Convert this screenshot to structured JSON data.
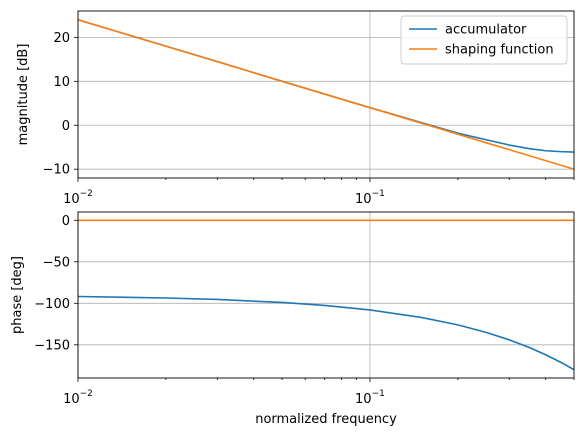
{
  "chart_data": [
    {
      "type": "line",
      "xscale": "log",
      "xlim": [
        0.01,
        0.5
      ],
      "ylim": [
        -12,
        26
      ],
      "xlabel": "",
      "ylabel": "magnitude [dB]",
      "grid": true,
      "legend_position": "top-right",
      "x_ticks": [
        {
          "value": 0.01,
          "base": "10",
          "exp": "−2"
        },
        {
          "value": 0.1,
          "base": "10",
          "exp": "−1"
        }
      ],
      "y_ticks": [
        {
          "value": 20,
          "label": "20"
        },
        {
          "value": 10,
          "label": "10"
        },
        {
          "value": 0,
          "label": "0"
        },
        {
          "value": -10,
          "label": "−10"
        }
      ],
      "series": [
        {
          "name": "accumulator",
          "color": "#1f77b4",
          "points": [
            [
              0.01,
              24.0
            ],
            [
              0.02,
              18.0
            ],
            [
              0.03,
              14.5
            ],
            [
              0.05,
              10.0
            ],
            [
              0.07,
              7.1
            ],
            [
              0.1,
              4.0
            ],
            [
              0.12,
              2.5
            ],
            [
              0.15,
              0.6
            ],
            [
              0.2,
              -1.8
            ],
            [
              0.25,
              -3.3
            ],
            [
              0.3,
              -4.5
            ],
            [
              0.35,
              -5.3
            ],
            [
              0.4,
              -5.8
            ],
            [
              0.45,
              -6.0
            ],
            [
              0.5,
              -6.1
            ]
          ]
        },
        {
          "name": "shaping function",
          "color": "#ff7f0e",
          "points": [
            [
              0.01,
              24.0
            ],
            [
              0.1,
              4.0
            ],
            [
              0.5,
              -10.0
            ]
          ]
        }
      ]
    },
    {
      "type": "line",
      "xscale": "log",
      "xlim": [
        0.01,
        0.5
      ],
      "ylim": [
        -190,
        10
      ],
      "xlabel": "normalized frequency",
      "ylabel": "phase [deg]",
      "grid": true,
      "x_ticks": [
        {
          "value": 0.01,
          "base": "10",
          "exp": "−2"
        },
        {
          "value": 0.1,
          "base": "10",
          "exp": "−1"
        }
      ],
      "y_ticks": [
        {
          "value": 0,
          "label": "0"
        },
        {
          "value": -50,
          "label": "−50"
        },
        {
          "value": -100,
          "label": "−100"
        },
        {
          "value": -150,
          "label": "−150"
        }
      ],
      "series": [
        {
          "name": "accumulator",
          "color": "#1f77b4",
          "points": [
            [
              0.01,
              -91.8
            ],
            [
              0.02,
              -93.6
            ],
            [
              0.03,
              -95.4
            ],
            [
              0.05,
              -99.0
            ],
            [
              0.07,
              -102.6
            ],
            [
              0.1,
              -108.0
            ],
            [
              0.15,
              -117.0
            ],
            [
              0.2,
              -126.0
            ],
            [
              0.25,
              -135.0
            ],
            [
              0.3,
              -144.0
            ],
            [
              0.35,
              -153.0
            ],
            [
              0.4,
              -162.0
            ],
            [
              0.45,
              -171.0
            ],
            [
              0.5,
              -180.0
            ]
          ]
        },
        {
          "name": "shaping function",
          "color": "#ff7f0e",
          "points": [
            [
              0.01,
              0.0
            ],
            [
              0.5,
              0.0
            ]
          ]
        }
      ]
    }
  ]
}
